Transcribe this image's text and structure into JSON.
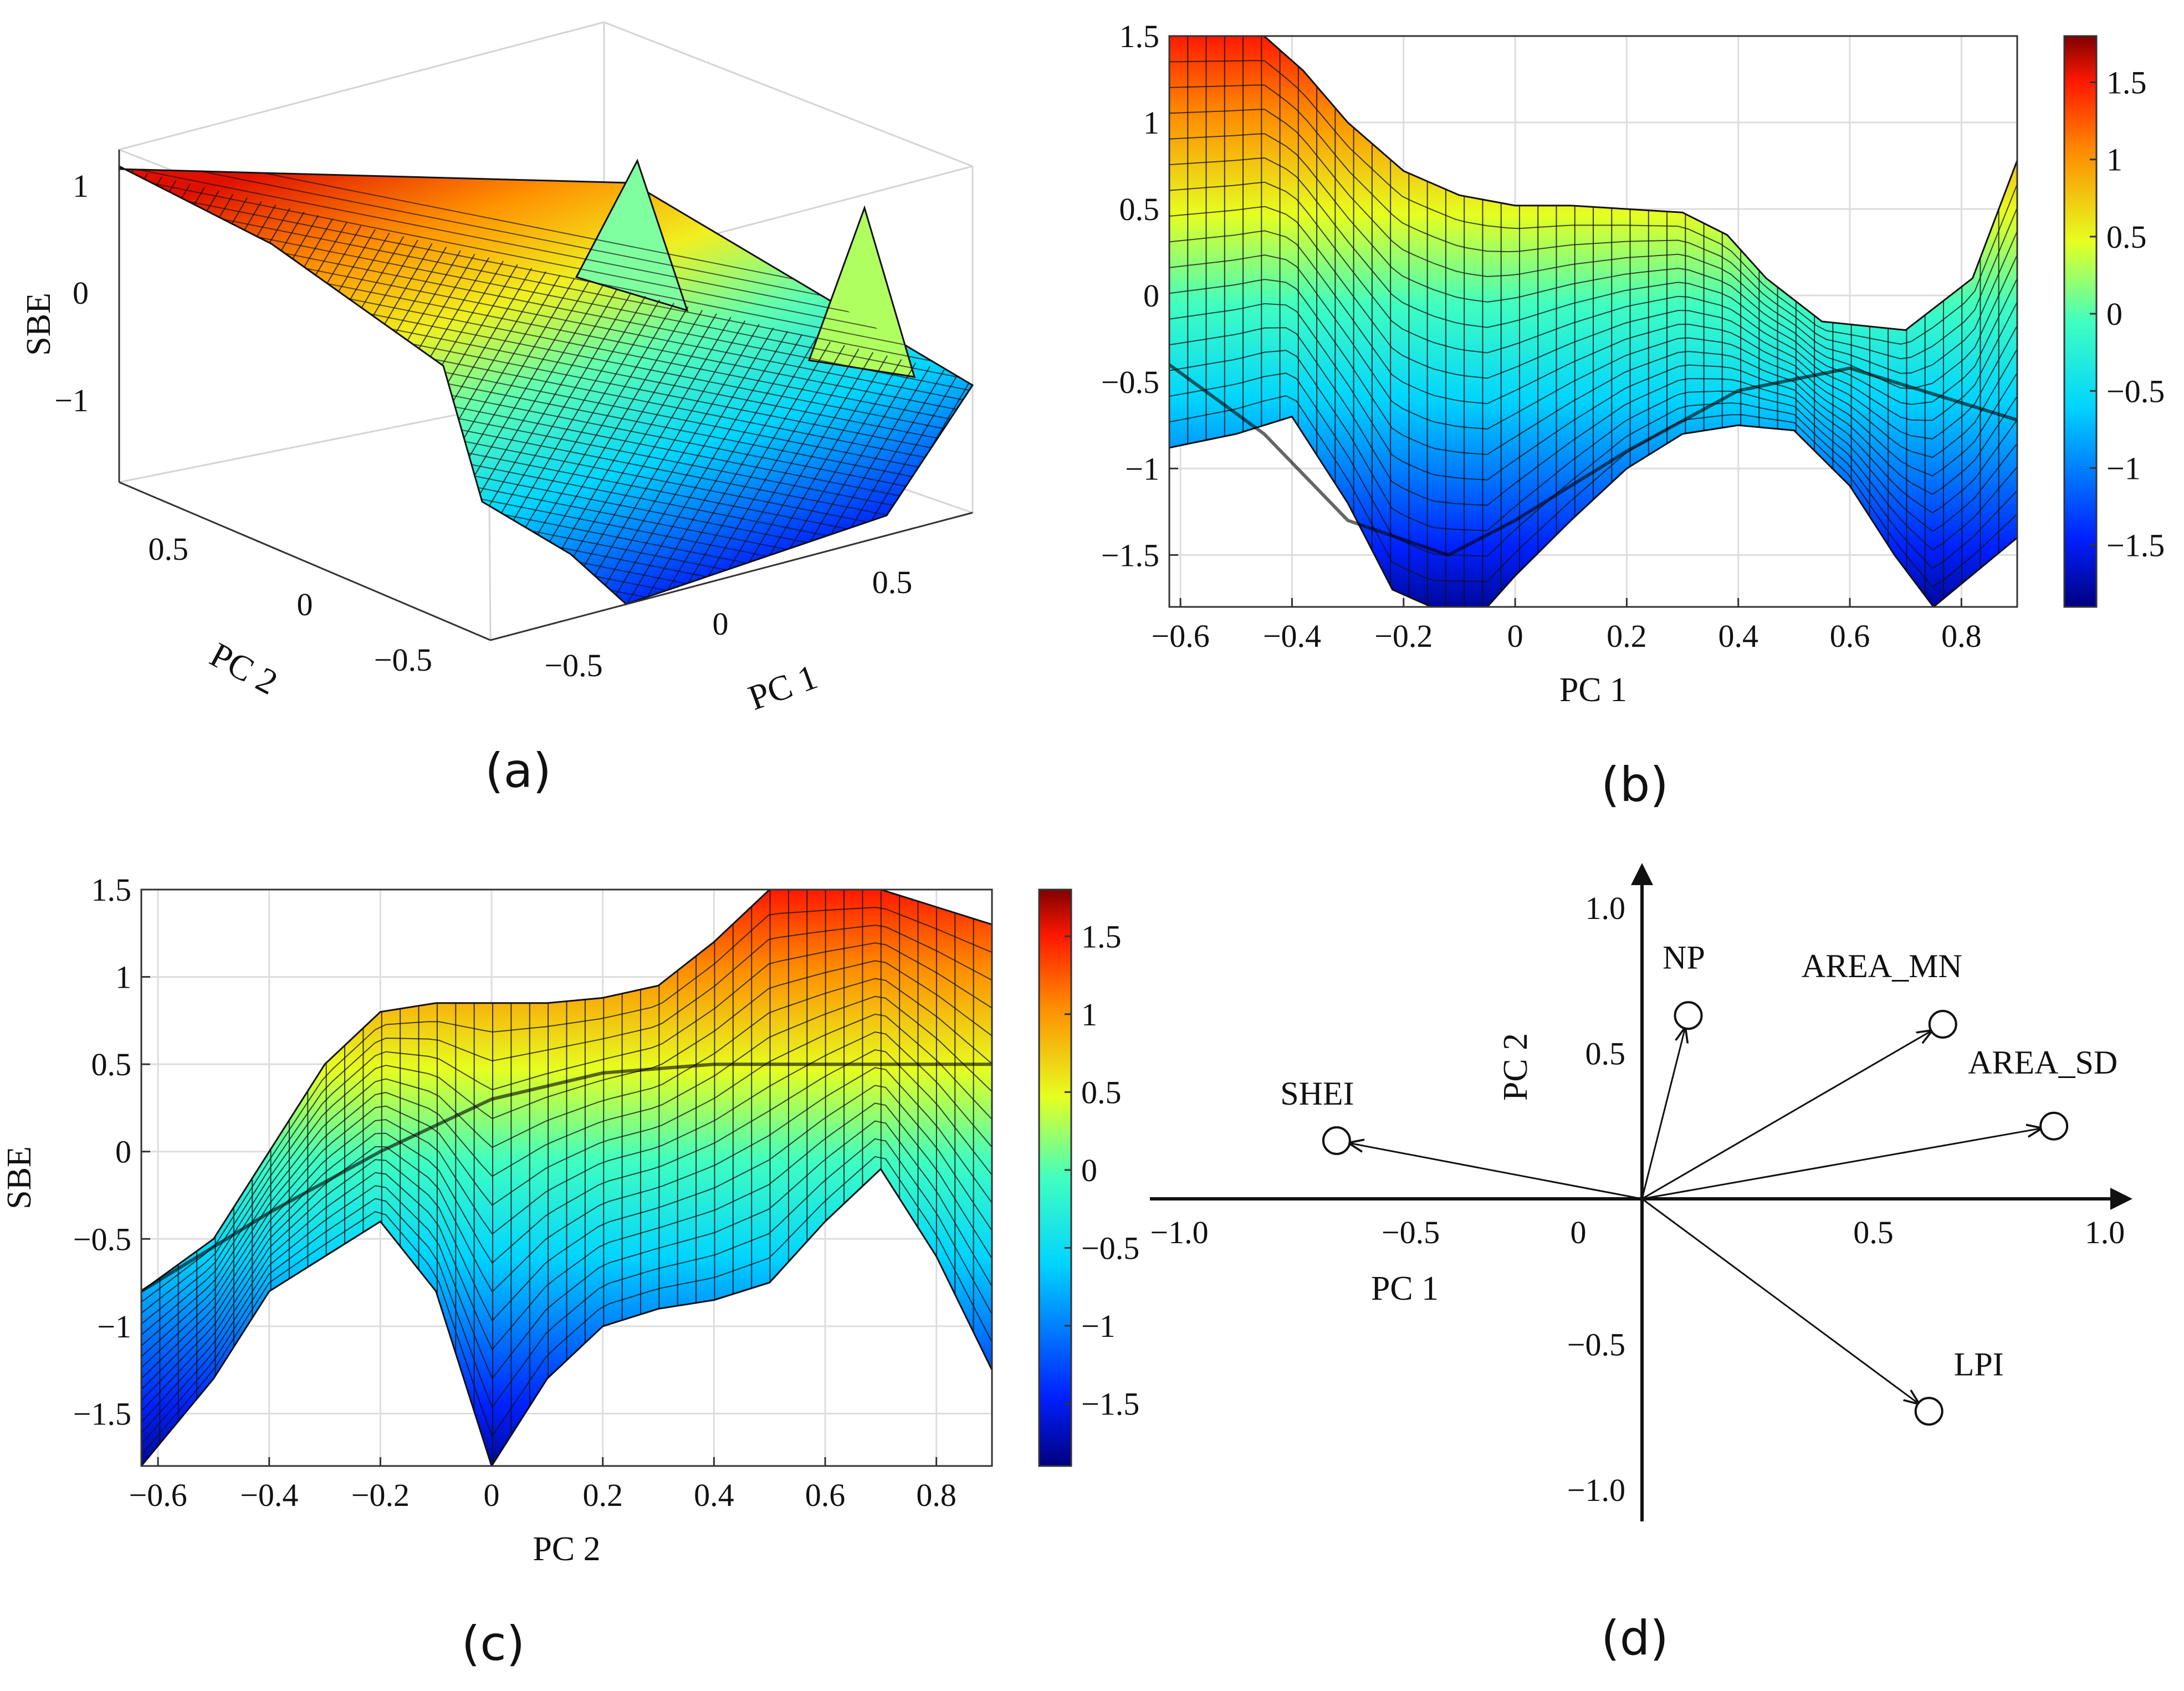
{
  "chart_data": [
    {
      "panel": "a",
      "type": "surface3d",
      "caption": "(a)",
      "xlabel": "PC 1",
      "ylabel": "PC 2",
      "zlabel": "SBE",
      "xticks": [
        "−0.5",
        "0",
        "0.5"
      ],
      "yticks": [
        "−0.5",
        "0",
        "0.5"
      ],
      "zticks": [
        "−1",
        "0",
        "1"
      ],
      "zlim": [
        -1.8,
        1.5
      ],
      "grid": true
    },
    {
      "panel": "b",
      "type": "surface_projection",
      "caption": "(b)",
      "xlabel": "PC 1",
      "ylabel": "",
      "xlim": [
        -0.62,
        0.9
      ],
      "ylim": [
        -1.8,
        1.5
      ],
      "xticks": [
        "−0.6",
        "−0.4",
        "−0.2",
        "0",
        "0.2",
        "0.4",
        "0.6",
        "0.8"
      ],
      "yticks": [
        "−1.5",
        "−1",
        "−0.5",
        "0",
        "0.5",
        "1",
        "1.5"
      ],
      "colorbar": {
        "range": [
          -1.9,
          1.8
        ],
        "ticks": [
          "−1.5",
          "−1",
          "−0.5",
          "0",
          "0.5",
          "1",
          "1.5"
        ]
      },
      "top_edge": [
        [
          -0.62,
          1.5
        ],
        [
          -0.55,
          1.5
        ],
        [
          -0.45,
          1.5
        ],
        [
          -0.38,
          1.3
        ],
        [
          -0.3,
          1.0
        ],
        [
          -0.2,
          0.72
        ],
        [
          -0.1,
          0.58
        ],
        [
          0.0,
          0.52
        ],
        [
          0.1,
          0.52
        ],
        [
          0.2,
          0.5
        ],
        [
          0.3,
          0.48
        ],
        [
          0.38,
          0.35
        ],
        [
          0.45,
          0.1
        ],
        [
          0.55,
          -0.15
        ],
        [
          0.7,
          -0.2
        ],
        [
          0.82,
          0.1
        ],
        [
          0.9,
          0.78
        ]
      ],
      "bottom_edge": [
        [
          -0.62,
          -0.88
        ],
        [
          -0.5,
          -0.8
        ],
        [
          -0.4,
          -0.7
        ],
        [
          -0.3,
          -1.2
        ],
        [
          -0.22,
          -1.7
        ],
        [
          -0.15,
          -1.8
        ],
        [
          -0.05,
          -1.8
        ],
        [
          0.0,
          -1.62
        ],
        [
          0.1,
          -1.3
        ],
        [
          0.2,
          -1.0
        ],
        [
          0.3,
          -0.8
        ],
        [
          0.4,
          -0.75
        ],
        [
          0.5,
          -0.78
        ],
        [
          0.6,
          -1.1
        ],
        [
          0.68,
          -1.5
        ],
        [
          0.75,
          -1.8
        ],
        [
          0.9,
          -1.4
        ]
      ],
      "dip_line": [
        [
          -0.62,
          -0.4
        ],
        [
          -0.45,
          -0.8
        ],
        [
          -0.3,
          -1.3
        ],
        [
          -0.12,
          -1.5
        ],
        [
          0.0,
          -1.3
        ],
        [
          0.2,
          -0.9
        ],
        [
          0.4,
          -0.55
        ],
        [
          0.6,
          -0.42
        ],
        [
          0.9,
          -0.72
        ]
      ]
    },
    {
      "panel": "c",
      "type": "surface_projection",
      "caption": "(c)",
      "xlabel": "PC 2",
      "ylabel": "SBE",
      "xlim": [
        -0.63,
        0.9
      ],
      "ylim": [
        -1.8,
        1.5
      ],
      "xticks": [
        "−0.6",
        "−0.4",
        "−0.2",
        "0",
        "0.2",
        "0.4",
        "0.6",
        "0.8"
      ],
      "yticks": [
        "−1.5",
        "−1",
        "−0.5",
        "0",
        "0.5",
        "1",
        "1.5"
      ],
      "colorbar": {
        "range": [
          -1.9,
          1.8
        ],
        "ticks": [
          "−1.5",
          "−1",
          "−0.5",
          "0",
          "0.5",
          "1",
          "1.5"
        ]
      },
      "top_edge": [
        [
          -0.63,
          -0.8
        ],
        [
          -0.5,
          -0.5
        ],
        [
          -0.4,
          0.0
        ],
        [
          -0.3,
          0.5
        ],
        [
          -0.2,
          0.8
        ],
        [
          -0.1,
          0.85
        ],
        [
          0.0,
          0.85
        ],
        [
          0.1,
          0.85
        ],
        [
          0.2,
          0.88
        ],
        [
          0.3,
          0.95
        ],
        [
          0.4,
          1.2
        ],
        [
          0.5,
          1.5
        ],
        [
          0.7,
          1.5
        ],
        [
          0.8,
          1.4
        ],
        [
          0.9,
          1.3
        ]
      ],
      "bottom_edge": [
        [
          -0.63,
          -1.8
        ],
        [
          -0.5,
          -1.3
        ],
        [
          -0.4,
          -0.8
        ],
        [
          -0.3,
          -0.6
        ],
        [
          -0.2,
          -0.4
        ],
        [
          -0.1,
          -0.8
        ],
        [
          0.0,
          -1.8
        ],
        [
          0.1,
          -1.3
        ],
        [
          0.2,
          -1.0
        ],
        [
          0.3,
          -0.9
        ],
        [
          0.4,
          -0.85
        ],
        [
          0.5,
          -0.75
        ],
        [
          0.6,
          -0.4
        ],
        [
          0.7,
          -0.1
        ],
        [
          0.8,
          -0.6
        ],
        [
          0.9,
          -1.25
        ]
      ],
      "ridge_line": [
        [
          -0.63,
          -0.8
        ],
        [
          -0.4,
          -0.35
        ],
        [
          -0.2,
          0.0
        ],
        [
          0.0,
          0.3
        ],
        [
          0.2,
          0.45
        ],
        [
          0.4,
          0.5
        ],
        [
          0.6,
          0.5
        ],
        [
          0.9,
          0.5
        ]
      ]
    },
    {
      "panel": "d",
      "type": "biplot",
      "caption": "(d)",
      "xlabel": "PC 1",
      "ylabel": "PC 2",
      "xlim": [
        -1.05,
        1.05
      ],
      "ylim": [
        -1.05,
        1.05
      ],
      "xticks": [
        "−1.0",
        "−0.5",
        "0",
        "0.5",
        "1.0"
      ],
      "yticks": [
        "−1.0",
        "−0.5",
        "0.5",
        "1.0"
      ],
      "vectors": [
        {
          "name": "NP",
          "x": 0.1,
          "y": 0.63
        },
        {
          "name": "AREA_MN",
          "x": 0.65,
          "y": 0.6
        },
        {
          "name": "AREA_SD",
          "x": 0.89,
          "y": 0.25
        },
        {
          "name": "SHEI",
          "x": -0.66,
          "y": 0.2
        },
        {
          "name": "LPI",
          "x": 0.62,
          "y": -0.73
        }
      ]
    }
  ]
}
